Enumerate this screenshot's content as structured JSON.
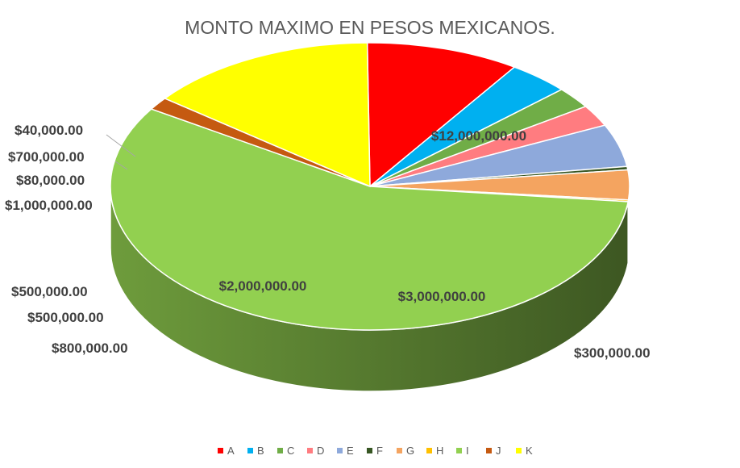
{
  "chart_data": {
    "type": "pie",
    "title": "MONTO MAXIMO EN PESOS MEXICANOS.",
    "categories": [
      "A",
      "B",
      "C",
      "D",
      "E",
      "F",
      "G",
      "H",
      "I",
      "J",
      "K"
    ],
    "values": [
      2000000,
      800000,
      500000,
      500000,
      1000000,
      80000,
      700000,
      40000,
      12000000,
      300000,
      3000000
    ],
    "labels": [
      "$2,000,000.00",
      "$800,000.00",
      "$500,000.00",
      "$500,000.00",
      "$1,000,000.00",
      "$80,000.00",
      "$700,000.00",
      "$40,000.00",
      "$12,000,000.00",
      "$300,000.00",
      "$3,000,000.00"
    ],
    "colors": [
      "#ff0000",
      "#00b0f0",
      "#70ad47",
      "#ff7c80",
      "#8ea9db",
      "#375623",
      "#f4a460",
      "#ffc000",
      "#92d050",
      "#c55a11",
      "#ffff00"
    ],
    "legend_order": [
      "A",
      "B",
      "C",
      "D",
      "E",
      "F",
      "G",
      "H",
      "I",
      "J",
      "K"
    ],
    "legend_colors": [
      "#ff0000",
      "#00b0f0",
      "#70ad47",
      "#ff7c80",
      "#8ea9db",
      "#375623",
      "#f4a460",
      "#ffc000",
      "#92d050",
      "#c55a11",
      "#ffff00"
    ],
    "legend_position": "bottom",
    "style": "3d-pie"
  }
}
